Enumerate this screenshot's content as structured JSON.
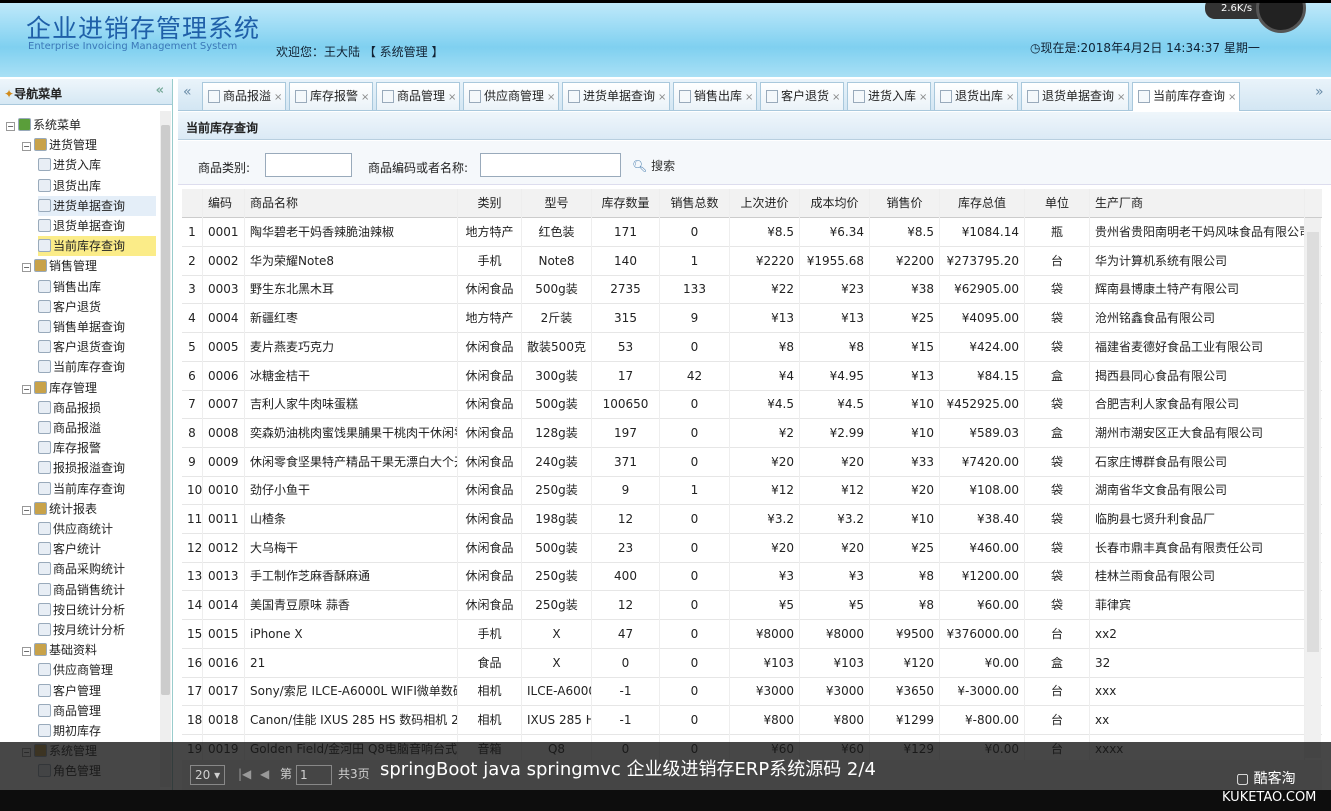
{
  "header": {
    "title": "企业进销存管理系统",
    "subtitle": "Enterprise Invoicing Management System",
    "welcome": "欢迎您：王大陆 【 系统管理 】",
    "clock": "现在是:2018年4月2日 14:34:37 星期一",
    "speed": "2.6K/s"
  },
  "sidebar": {
    "title": "导航菜单",
    "collapse": "«",
    "items": [
      {
        "label": "系统菜单",
        "level": 0,
        "sel": false
      },
      {
        "label": "进货管理",
        "level": 1
      },
      {
        "label": "进货入库",
        "level": 2
      },
      {
        "label": "退货出库",
        "level": 2
      },
      {
        "label": "进货单据查询",
        "level": 2,
        "hov": true
      },
      {
        "label": "退货单据查询",
        "level": 2
      },
      {
        "label": "当前库存查询",
        "level": 2,
        "sel": true
      },
      {
        "label": "销售管理",
        "level": 1
      },
      {
        "label": "销售出库",
        "level": 2
      },
      {
        "label": "客户退货",
        "level": 2
      },
      {
        "label": "销售单据查询",
        "level": 2
      },
      {
        "label": "客户退货查询",
        "level": 2
      },
      {
        "label": "当前库存查询",
        "level": 2
      },
      {
        "label": "库存管理",
        "level": 1
      },
      {
        "label": "商品报损",
        "level": 2
      },
      {
        "label": "商品报溢",
        "level": 2
      },
      {
        "label": "库存报警",
        "level": 2
      },
      {
        "label": "报损报溢查询",
        "level": 2
      },
      {
        "label": "当前库存查询",
        "level": 2
      },
      {
        "label": "统计报表",
        "level": 1
      },
      {
        "label": "供应商统计",
        "level": 2
      },
      {
        "label": "客户统计",
        "level": 2
      },
      {
        "label": "商品采购统计",
        "level": 2
      },
      {
        "label": "商品销售统计",
        "level": 2
      },
      {
        "label": "按日统计分析",
        "level": 2
      },
      {
        "label": "按月统计分析",
        "level": 2
      },
      {
        "label": "基础资料",
        "level": 1
      },
      {
        "label": "供应商管理",
        "level": 2
      },
      {
        "label": "客户管理",
        "level": 2
      },
      {
        "label": "商品管理",
        "level": 2
      },
      {
        "label": "期初库存",
        "level": 2
      },
      {
        "label": "系统管理",
        "level": 1
      },
      {
        "label": "角色管理",
        "level": 2
      }
    ]
  },
  "tabs": {
    "prev": "«",
    "next": "»",
    "items": [
      {
        "label": "商品报溢"
      },
      {
        "label": "库存报警"
      },
      {
        "label": "商品管理"
      },
      {
        "label": "供应商管理"
      },
      {
        "label": "进货单据查询"
      },
      {
        "label": "销售出库"
      },
      {
        "label": "客户退货"
      },
      {
        "label": "进货入库"
      },
      {
        "label": "退货出库"
      },
      {
        "label": "退货单据查询"
      },
      {
        "label": "当前库存查询",
        "active": true
      }
    ]
  },
  "panel": {
    "title": "当前库存查询"
  },
  "search": {
    "category_label": "商品类别:",
    "category_value": "",
    "code_label": "商品编码或者名称:",
    "code_value": "",
    "search_button": "搜索"
  },
  "table": {
    "columns": [
      "",
      "编码",
      "商品名称",
      "类别",
      "型号",
      "库存数量",
      "销售总数",
      "上次进价",
      "成本均价",
      "销售价",
      "库存总值",
      "单位",
      "生产厂商"
    ],
    "rows": [
      [
        "1",
        "0001",
        "陶华碧老干妈香辣脆油辣椒",
        "地方特产",
        "红色装",
        "171",
        "0",
        "¥8.5",
        "¥6.34",
        "¥8.5",
        "¥1084.14",
        "瓶",
        "贵州省贵阳南明老干妈风味食品有限公司"
      ],
      [
        "2",
        "0002",
        "华为荣耀Note8",
        "手机",
        "Note8",
        "140",
        "1",
        "¥2220",
        "¥1955.68",
        "¥2200",
        "¥273795.20",
        "台",
        "华为计算机系统有限公司"
      ],
      [
        "3",
        "0003",
        "野生东北黑木耳",
        "休闲食品",
        "500g装",
        "2735",
        "133",
        "¥22",
        "¥23",
        "¥38",
        "¥62905.00",
        "袋",
        "辉南县博康土特产有限公司"
      ],
      [
        "4",
        "0004",
        "新疆红枣",
        "地方特产",
        "2斤装",
        "315",
        "9",
        "¥13",
        "¥13",
        "¥25",
        "¥4095.00",
        "袋",
        "沧州铭鑫食品有限公司"
      ],
      [
        "5",
        "0005",
        "麦片燕麦巧克力",
        "休闲食品",
        "散装500克",
        "53",
        "0",
        "¥8",
        "¥8",
        "¥15",
        "¥424.00",
        "袋",
        "福建省麦德好食品工业有限公司"
      ],
      [
        "6",
        "0006",
        "冰糖金桔干",
        "休闲食品",
        "300g装",
        "17",
        "42",
        "¥4",
        "¥4.95",
        "¥13",
        "¥84.15",
        "盒",
        "揭西县同心食品有限公司"
      ],
      [
        "7",
        "0007",
        "吉利人家牛肉味蛋糕",
        "休闲食品",
        "500g装",
        "100650",
        "0",
        "¥4.5",
        "¥4.5",
        "¥10",
        "¥452925.00",
        "袋",
        "合肥吉利人家食品有限公司"
      ],
      [
        "8",
        "0008",
        "奕森奶油桃肉蜜饯果脯果干桃肉干休闲零食",
        "休闲食品",
        "128g装",
        "197",
        "0",
        "¥2",
        "¥2.99",
        "¥10",
        "¥589.03",
        "盒",
        "潮州市潮安区正大食品有限公司"
      ],
      [
        "9",
        "0009",
        "休闲零食坚果特产精品干果无漂白大个开口",
        "休闲食品",
        "240g装",
        "371",
        "0",
        "¥20",
        "¥20",
        "¥33",
        "¥7420.00",
        "袋",
        "石家庄博群食品有限公司"
      ],
      [
        "10",
        "0010",
        "劲仔小鱼干",
        "休闲食品",
        "250g装",
        "9",
        "1",
        "¥12",
        "¥12",
        "¥20",
        "¥108.00",
        "袋",
        "湖南省华文食品有限公司"
      ],
      [
        "11",
        "0011",
        "山楂条",
        "休闲食品",
        "198g装",
        "12",
        "0",
        "¥3.2",
        "¥3.2",
        "¥10",
        "¥38.40",
        "袋",
        "临朐县七贤升利食品厂"
      ],
      [
        "12",
        "0012",
        "大乌梅干",
        "休闲食品",
        "500g装",
        "23",
        "0",
        "¥20",
        "¥20",
        "¥25",
        "¥460.00",
        "袋",
        "长春市鼎丰真食品有限责任公司"
      ],
      [
        "13",
        "0013",
        "手工制作芝麻香酥麻通",
        "休闲食品",
        "250g装",
        "400",
        "0",
        "¥3",
        "¥3",
        "¥8",
        "¥1200.00",
        "袋",
        "桂林兰雨食品有限公司"
      ],
      [
        "14",
        "0014",
        "美国青豆原味 蒜香",
        "休闲食品",
        "250g装",
        "12",
        "0",
        "¥5",
        "¥5",
        "¥8",
        "¥60.00",
        "袋",
        "菲律宾"
      ],
      [
        "15",
        "0015",
        "iPhone X",
        "手机",
        "X",
        "47",
        "0",
        "¥8000",
        "¥8000",
        "¥9500",
        "¥376000.00",
        "台",
        "xx2"
      ],
      [
        "16",
        "0016",
        "21",
        "食品",
        "X",
        "0",
        "0",
        "¥103",
        "¥103",
        "¥120",
        "¥0.00",
        "盒",
        "32"
      ],
      [
        "17",
        "0017",
        "Sony/索尼 ILCE-A6000L WIFI微单数码相机",
        "相机",
        "ILCE-A6000L",
        "-1",
        "0",
        "¥3000",
        "¥3000",
        "¥3650",
        "¥-3000.00",
        "台",
        "xxx"
      ],
      [
        "18",
        "0018",
        "Canon/佳能 IXUS 285 HS 数码相机 2020万",
        "相机",
        "IXUS 285 HS",
        "-1",
        "0",
        "¥800",
        "¥800",
        "¥1299",
        "¥-800.00",
        "台",
        "xx"
      ],
      [
        "19",
        "0019",
        "Golden Field/金河田 Q8电脑音响台式多媒体",
        "音箱",
        "Q8",
        "0",
        "0",
        "¥60",
        "¥60",
        "¥129",
        "¥0.00",
        "台",
        "xxxx"
      ]
    ]
  },
  "pager": {
    "page_size": "20 ▾",
    "page_label": "第",
    "page_value": "1",
    "total_pages": "共3页"
  },
  "overlay": {
    "caption": "springBoot java springmvc 企业级进销存ERP系统源码   2/4",
    "brand": "▢ 酷客淘",
    "domain": "KUKETAO.COM"
  }
}
